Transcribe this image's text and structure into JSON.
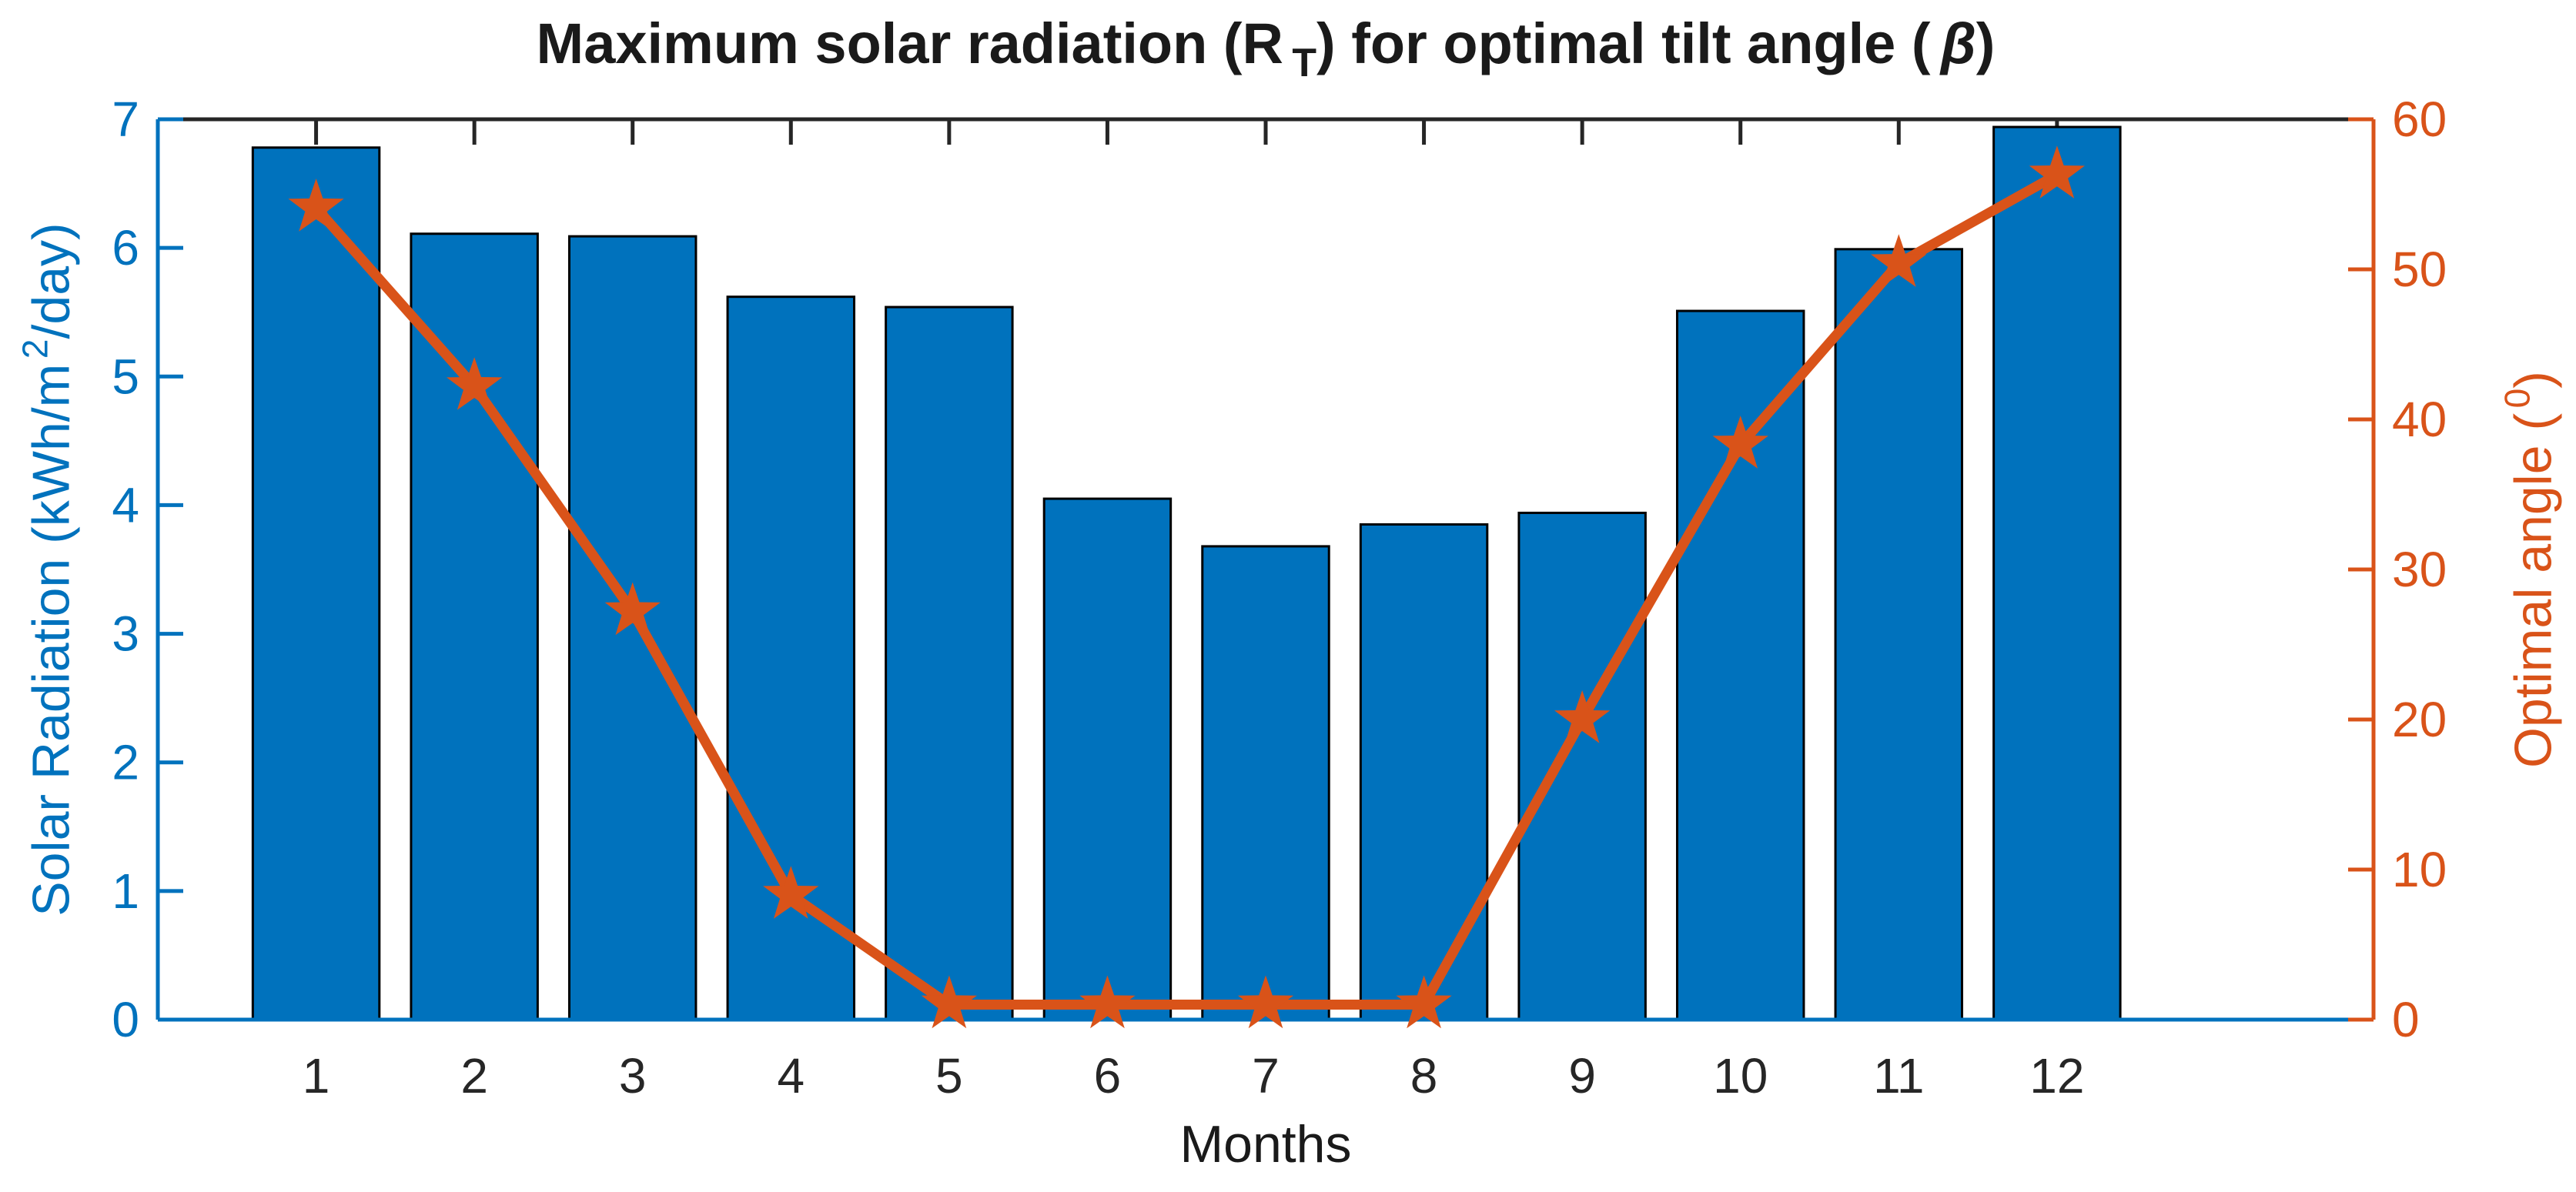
{
  "figure": {
    "title_parts": {
      "pre": "Maximum solar radiation (R",
      "sub": "T",
      "mid": ") for optimal tilt angle (",
      "beta": "β",
      "post": ")"
    },
    "ylabel_left_parts": {
      "pre": "Solar Radiation (kWh/m",
      "sup": "2",
      "post": "/day)"
    },
    "ylabel_right_parts": {
      "pre": "Optimal angle (",
      "sup": "0",
      "post": ")"
    },
    "xlabel": "Months"
  },
  "chart_data": {
    "type": "bar+line (dual y-axis)",
    "title": "Maximum solar radiation (R_T) for optimal tilt angle (β)",
    "xlabel": "Months",
    "ylabel_left": "Solar Radiation (kWh/m^2/day)",
    "ylabel_right": "Optimal angle (^0)",
    "categories": [
      1,
      2,
      3,
      4,
      5,
      6,
      7,
      8,
      9,
      10,
      11,
      12
    ],
    "series": [
      {
        "name": "Solar Radiation",
        "type": "bar",
        "axis": "left",
        "values": [
          6.78,
          6.11,
          6.09,
          5.62,
          5.54,
          4.05,
          3.68,
          3.85,
          3.94,
          5.51,
          5.99,
          6.94
        ]
      },
      {
        "name": "Optimal angle",
        "type": "line",
        "marker": "pentagram-star",
        "axis": "right",
        "values": [
          54.1,
          42.2,
          27.2,
          8.3,
          1.0,
          1.0,
          1.0,
          1.0,
          20.0,
          38.3,
          50.4,
          56.3
        ]
      }
    ],
    "xlim": [
      0,
      14
    ],
    "ylim_left": [
      0,
      7
    ],
    "ylim_right": [
      0,
      60
    ],
    "yticks_left": [
      0,
      1,
      2,
      3,
      4,
      5,
      6,
      7
    ],
    "yticks_right": [
      0,
      10,
      20,
      30,
      40,
      50,
      60
    ],
    "xticks": [
      1,
      2,
      3,
      4,
      5,
      6,
      7,
      8,
      9,
      10,
      11,
      12
    ],
    "grid": false,
    "legend": "none",
    "bar_width_fraction": 0.8,
    "colors": {
      "bar_fill": "#0072BD",
      "bar_edge": "#000000",
      "left_axis": "#0072BD",
      "right_axis": "#D95319",
      "line": "#D95319",
      "marker": "#D95319",
      "frame": "#262626",
      "x_tick_text": "#262626"
    }
  }
}
